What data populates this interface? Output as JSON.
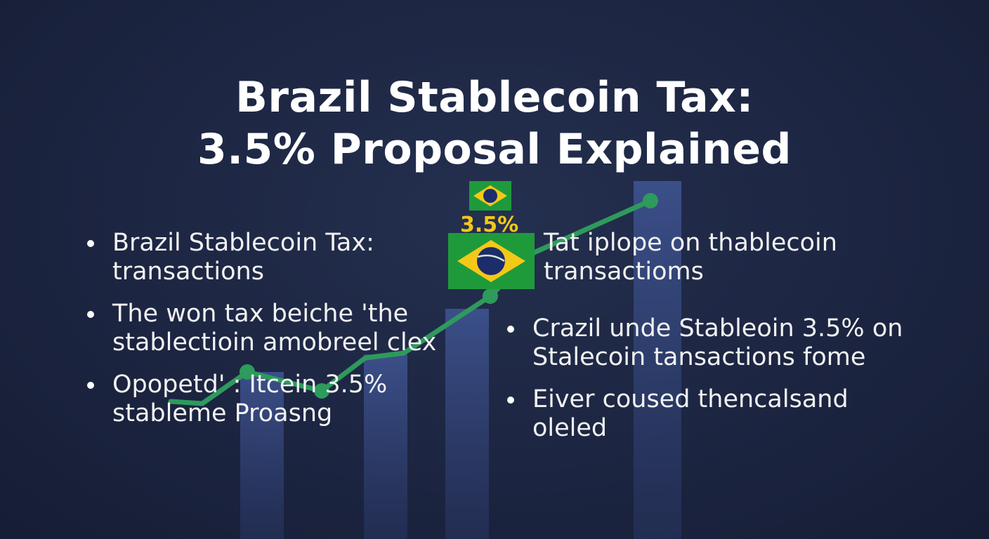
{
  "title": {
    "line1": "Brazil Stablecoin Tax:",
    "line2": "3.5% Proposal Explained"
  },
  "badge": {
    "percent": "3.5%"
  },
  "left_bullets": [
    {
      "text": "Brazil Stablecoin Tax: transactions"
    },
    {
      "text": "The won tax beiche 'the stablectioin amobreel clex"
    },
    {
      "text": "Opopetd' : Itcein 3.5% stableme Proasng"
    }
  ],
  "right_bullets": [
    {
      "text": "Tat iplope on thablecoin transactioms"
    },
    {
      "text": "Crazil unde Stableoin 3.5% on Stalecoin tansactions fome"
    },
    {
      "text": "Eiver coused thencalsand oleled"
    }
  ],
  "colors": {
    "background": "#1c2541",
    "line": "#2e9a5c",
    "bars": "#3a4d85",
    "flag_green": "#1f9a3b",
    "flag_yellow": "#f4c817",
    "flag_blue": "#1d2c6b",
    "accent": "#f4c817"
  },
  "icons": [
    "brazil-flag-icon"
  ]
}
